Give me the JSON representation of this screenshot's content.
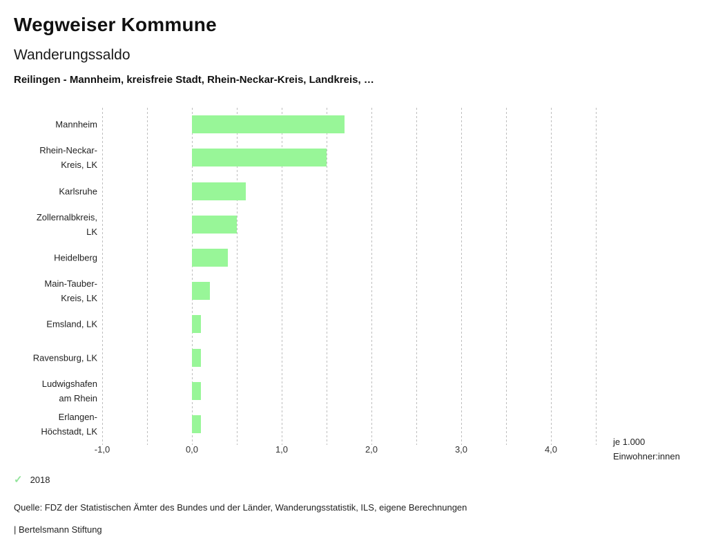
{
  "header": {
    "title": "Wegweiser Kommune",
    "subtitle": "Wanderungssaldo",
    "selection": "Reilingen - Mannheim, kreisfreie Stadt, Rhein-Neckar-Kreis, Landkreis, …"
  },
  "chart_data": {
    "type": "bar",
    "orientation": "horizontal",
    "title": "Wanderungssaldo",
    "categories": [
      "Mannheim",
      "Rhein-Neckar-Kreis, LK",
      "Karlsruhe",
      "Zollernalbkreis, LK",
      "Heidelberg",
      "Main-Tauber-Kreis, LK",
      "Emsland, LK",
      "Ravensburg, LK",
      "Ludwigshafen am Rhein",
      "Erlangen-Höchstadt, LK"
    ],
    "category_lines": [
      [
        "Mannheim"
      ],
      [
        "Rhein-Neckar-",
        "Kreis, LK"
      ],
      [
        "Karlsruhe"
      ],
      [
        "Zollernalbkreis,",
        "LK"
      ],
      [
        "Heidelberg"
      ],
      [
        "Main-Tauber-",
        "Kreis, LK"
      ],
      [
        "Emsland, LK"
      ],
      [
        "Ravensburg, LK"
      ],
      [
        "Ludwigshafen",
        "am Rhein"
      ],
      [
        "Erlangen-",
        "Höchstadt, LK"
      ]
    ],
    "values": [
      1.7,
      1.5,
      0.6,
      0.5,
      0.4,
      0.2,
      0.1,
      0.1,
      0.1,
      0.1
    ],
    "series_name": "2018",
    "xlim": [
      -1.0,
      4.5
    ],
    "gridline_step": 0.5,
    "x_ticks": [
      -1.0,
      0.0,
      1.0,
      2.0,
      3.0,
      4.0
    ],
    "x_tick_labels": [
      "-1,0",
      "0,0",
      "1,0",
      "2,0",
      "3,0",
      "4,0"
    ],
    "unit_label_lines": [
      "je 1.000",
      "Einwohner:innen"
    ],
    "grid": true,
    "legend_position": "bottom-left"
  },
  "colors": {
    "bar": "#98f698",
    "check": "#94e49c",
    "grid": "#bdbdbd"
  },
  "legend": {
    "check_icon": "✓",
    "year": "2018"
  },
  "footer": {
    "source": "Quelle: FDZ der Statistischen Ämter des Bundes und der Länder, Wanderungsstatistik, ILS, eigene Berechnungen",
    "attribution": "| Bertelsmann Stiftung"
  }
}
